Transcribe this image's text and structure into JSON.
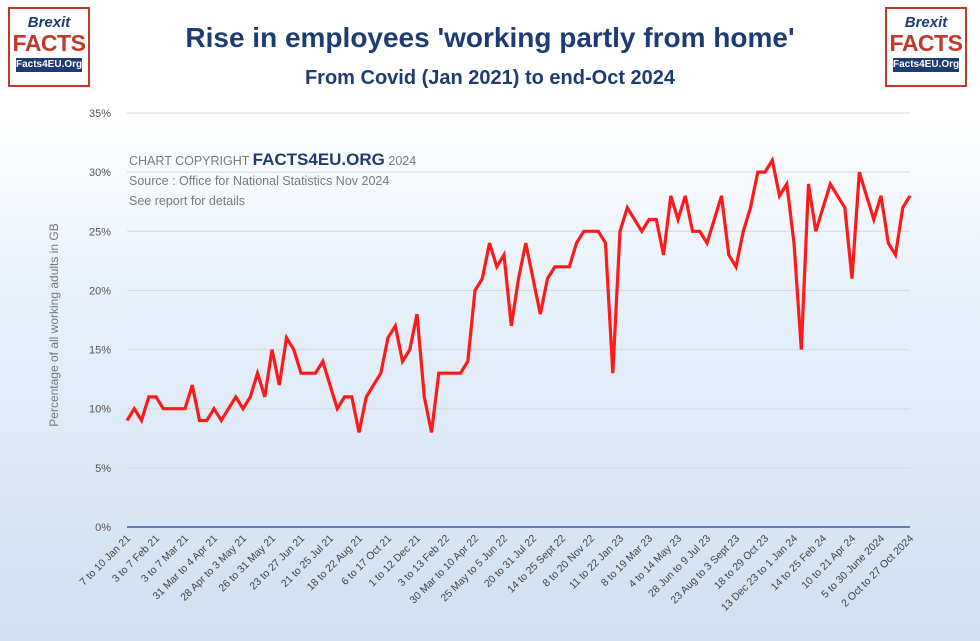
{
  "header": {
    "title": "Rise in employees 'working partly from home'",
    "subtitle": "From Covid (Jan 2021) to end-Oct 2024"
  },
  "logo": {
    "line1": "Brexit",
    "line2": "FACTS",
    "line3": "Facts4EU.Org"
  },
  "copyright": {
    "prefix": "CHART COPYRIGHT ",
    "brand": "FACTS4EU.ORG",
    "year": " 2024",
    "source": "Source : Office for National Statistics Nov 2024",
    "note": "See report for details"
  },
  "colors": {
    "line": "#ff1a1a",
    "title": "#1f3b73",
    "axis": "#1f3b9a",
    "grid": "#d4d9e0",
    "logo_red": "#c0392b"
  },
  "chart_data": {
    "type": "line",
    "title": "Rise in employees 'working partly from home'",
    "subtitle": "From Covid (Jan 2021) to end-Oct 2024",
    "xlabel": "",
    "ylabel": "Percentage of all working adults in GB",
    "ylim": [
      0,
      35
    ],
    "yticks": [
      "0%",
      "5%",
      "10%",
      "15%",
      "20%",
      "25%",
      "30%",
      "35%"
    ],
    "grid": true,
    "x_tick_labels": [
      "7 to 10 Jan 21",
      "3 to 7 Feb 21",
      "3 to 7 Mar 21",
      "31 Mar to 4 Apr 21",
      "28 Apr to 3 May 21",
      "26 to 31 May 21",
      "23 to 27 Jun 21",
      "21 to 25 Jul 21",
      "18 to 22 Aug 21",
      "6 to 17 Oct 21",
      "1 to 12 Dec 21",
      "3 to 13 Feb 22",
      "30 Mar to 10 Apr 22",
      "25 May to 5 Jun 22",
      "20 to 31 Jul 22",
      "14 to 25 Sept 22",
      "8 to 20 Nov 22",
      "11 to 22 Jan 23",
      "8 to 19 Mar 23",
      "4 to 14 May 23",
      "28 Jun to 9 Jul 23",
      "23 Aug to 3 Sept 23",
      "18 to 29 Oct 23",
      "13 Dec 23 to 1 Jan 24",
      "14 to 25 Feb 24",
      "10 to 21 Apr 24",
      "5 to 30 June 2024",
      "2 Oct to 27 Oct 2024"
    ],
    "series": [
      {
        "values": [
          9,
          10,
          9,
          11,
          11,
          10,
          10,
          10,
          10,
          12,
          9,
          9,
          10,
          9,
          10,
          11,
          10,
          11,
          13,
          11,
          15,
          12,
          16,
          15,
          13,
          13,
          13,
          14,
          12,
          10,
          11,
          11,
          8,
          11,
          12,
          13,
          16,
          17,
          14,
          15,
          18,
          11,
          8,
          13,
          13,
          13,
          13,
          14,
          20,
          21,
          24,
          22,
          23,
          17,
          21,
          24,
          21,
          18,
          21,
          22,
          22,
          22,
          24,
          25,
          25,
          25,
          24,
          13,
          25,
          27,
          26,
          25,
          26,
          26,
          23,
          28,
          26,
          28,
          25,
          25,
          24,
          26,
          28,
          23,
          22,
          25,
          27,
          30,
          30,
          31,
          28,
          29,
          24,
          15,
          29,
          25,
          27,
          29,
          28,
          27,
          21,
          30,
          28,
          26,
          28,
          24,
          23,
          27,
          28
        ]
      }
    ]
  }
}
